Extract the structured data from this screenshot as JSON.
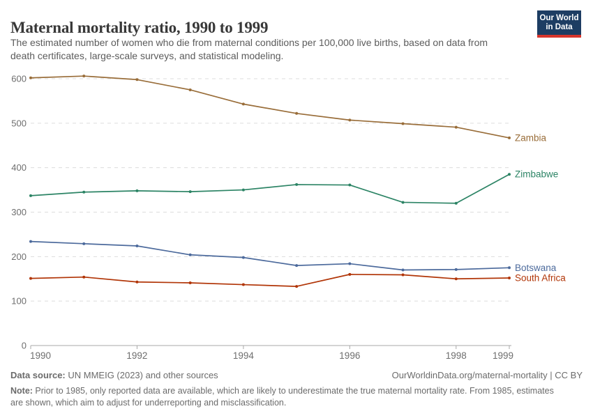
{
  "header": {
    "title": "Maternal mortality ratio, 1990 to 1999",
    "subtitle_line1": "The estimated number of women who die from maternal conditions per 100,000 live births, based on data from",
    "subtitle_line2": "death certificates, large-scale surveys, and statistical modeling.",
    "logo": {
      "line1": "Our World",
      "line2": "in Data",
      "bg_color": "#1d3d63",
      "accent_color": "#d7352c"
    }
  },
  "chart_data": {
    "type": "line",
    "title": "Maternal mortality ratio, 1990 to 1999",
    "x": [
      1990,
      1991,
      1992,
      1993,
      1994,
      1995,
      1996,
      1997,
      1998,
      1999
    ],
    "series": [
      {
        "name": "Zambia",
        "color": "#996D39",
        "values": [
          602,
          606,
          598,
          575,
          543,
          522,
          507,
          499,
          491,
          467
        ]
      },
      {
        "name": "Zimbabwe",
        "color": "#2C8465",
        "values": [
          337,
          345,
          348,
          346,
          350,
          362,
          361,
          322,
          320,
          385
        ]
      },
      {
        "name": "Botswana",
        "color": "#4C6A9C",
        "values": [
          234,
          229,
          224,
          204,
          198,
          180,
          184,
          170,
          171,
          175
        ]
      },
      {
        "name": "South Africa",
        "color": "#B13507",
        "values": [
          151,
          154,
          143,
          141,
          137,
          133,
          160,
          159,
          150,
          152
        ]
      }
    ],
    "xlabel": "",
    "ylabel": "",
    "ylim": [
      0,
      620
    ],
    "yticks": [
      0,
      100,
      200,
      300,
      400,
      500,
      600
    ],
    "xticks": [
      1990,
      1992,
      1994,
      1996,
      1998,
      1999
    ],
    "grid": "horizontal-dashed",
    "legend_position": "right-of-line-ends",
    "axis_color": "#a8a8a8",
    "grid_color": "#dcdcdc",
    "tick_label_color": "#6e6e6e"
  },
  "footer": {
    "source_label": "Data source:",
    "source_text": " UN MMEIG (2023) and other sources",
    "link_text": "OurWorldinData.org/maternal-mortality | CC BY",
    "note_label": "Note:",
    "note_line1": " Prior to 1985, only reported data are available, which are likely to underestimate the true maternal mortality rate. From 1985, estimates",
    "note_line2": "are shown, which aim to adjust for underreporting and misclassification."
  }
}
